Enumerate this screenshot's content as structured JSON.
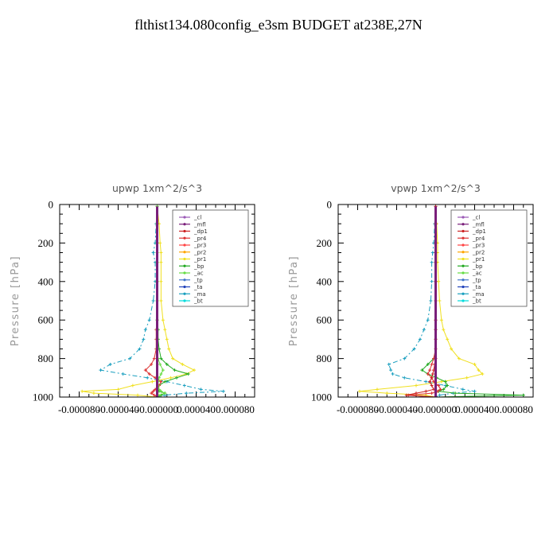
{
  "title": "flthist134.080config_e3sm  BUDGET at238E,27N",
  "legend_entries": [
    {
      "name": "_cl",
      "color": "#9b59b6"
    },
    {
      "name": "_mfl",
      "color": "#7a1f7a"
    },
    {
      "name": "_dp1",
      "color": "#cc2222"
    },
    {
      "name": "_pr4",
      "color": "#dd3333"
    },
    {
      "name": "_pr3",
      "color": "#ff4444"
    },
    {
      "name": "_pr2",
      "color": "#ffa500"
    },
    {
      "name": "_pr1",
      "color": "#f0e020"
    },
    {
      "name": "_bp",
      "color": "#22aa22"
    },
    {
      "name": "_ac",
      "color": "#66dd44"
    },
    {
      "name": "_tp",
      "color": "#4477cc"
    },
    {
      "name": "_ta",
      "color": "#2244bb"
    },
    {
      "name": "_ma",
      "color": "#1a9fbf"
    },
    {
      "name": "_bt",
      "color": "#00dddd"
    }
  ],
  "chart_data": [
    {
      "type": "line",
      "title": "upwp   1xm^2/s^3",
      "xlabel": "",
      "ylabel": "Pressure [hPa]",
      "xlim": [
        -0.0001,
        0.0001
      ],
      "ylim": [
        1000,
        0
      ],
      "xticks": [
        "-0.000080",
        "-0.000040",
        "-0.000000",
        "0.000040",
        "0.000080"
      ],
      "xtick_values": [
        -8e-05,
        -4e-05,
        0.0,
        4e-05,
        8e-05
      ],
      "yticks": [
        "0",
        "200",
        "400",
        "600",
        "800",
        "1000"
      ],
      "ytick_values": [
        0,
        200,
        400,
        600,
        800,
        1000
      ],
      "pressure": [
        10,
        100,
        200,
        250,
        300,
        400,
        500,
        600,
        650,
        700,
        750,
        800,
        830,
        860,
        880,
        900,
        920,
        940,
        960,
        970,
        980,
        990,
        1000
      ],
      "series": [
        {
          "name": "_pr1",
          "values": [
            0,
            2e-06,
            3e-06,
            4e-06,
            4e-06,
            4e-06,
            4e-06,
            6e-06,
            8e-06,
            1e-05,
            1.2e-05,
            1.6e-05,
            2.6e-05,
            3.8e-05,
            3e-05,
            1.4e-05,
            -5e-06,
            -2.5e-05,
            -4e-05,
            -7.7e-05,
            -6.5e-05,
            -2e-05,
            0
          ]
        },
        {
          "name": "_ma",
          "values": [
            0,
            -1e-06,
            -2e-06,
            -4e-06,
            -2e-06,
            -2e-06,
            -4e-06,
            -8e-06,
            -1.2e-05,
            -1.4e-05,
            -1.8e-05,
            -2.8e-05,
            -4.8e-05,
            -5.8e-05,
            -3.5e-05,
            -1e-05,
            1e-05,
            2.8e-05,
            4.5e-05,
            6.8e-05,
            3e-05,
            8e-06,
            0
          ]
        },
        {
          "name": "_bp",
          "values": [
            0,
            0,
            0,
            0,
            0,
            0,
            0,
            0,
            1e-06,
            1e-06,
            2e-06,
            4e-06,
            1e-05,
            1.8e-05,
            3.2e-05,
            2e-05,
            8e-06,
            2e-06,
            1e-06,
            2e-06,
            8e-06,
            4e-06,
            0
          ]
        },
        {
          "name": "_pr4",
          "values": [
            0,
            0,
            0,
            0,
            0,
            0,
            0,
            0,
            -1e-06,
            -1e-06,
            -1e-06,
            -3e-06,
            -6e-06,
            -1.2e-05,
            -8e-06,
            -2e-06,
            4e-06,
            2e-06,
            -2e-06,
            -4e-06,
            -6e-06,
            -3e-06,
            0
          ]
        },
        {
          "name": "_ac",
          "values": [
            0,
            0,
            0,
            0,
            0,
            0,
            0,
            0,
            0,
            0,
            0,
            1e-06,
            3e-06,
            6e-06,
            4e-06,
            2e-06,
            1e-06,
            1e-06,
            2e-06,
            4e-06,
            8e-06,
            2e-06,
            0
          ]
        },
        {
          "name": "_mfl",
          "values": [
            0,
            0,
            0,
            0,
            0,
            0,
            0,
            0,
            0,
            0,
            0,
            0,
            0,
            0,
            0,
            0,
            0,
            0,
            0,
            0,
            0,
            0,
            0
          ]
        }
      ]
    },
    {
      "type": "line",
      "title": "vpwp   1xm^2/s^3",
      "xlabel": "",
      "ylabel": "Pressure [hPa]",
      "xlim": [
        -0.0001,
        0.0001
      ],
      "ylim": [
        1000,
        0
      ],
      "xticks": [
        "-0.000080",
        "-0.000040",
        "-0.000000",
        "0.000040",
        "0.000080"
      ],
      "xtick_values": [
        -8e-05,
        -4e-05,
        0.0,
        4e-05,
        8e-05
      ],
      "yticks": [
        "0",
        "200",
        "400",
        "600",
        "800",
        "1000"
      ],
      "ytick_values": [
        0,
        200,
        400,
        600,
        800,
        1000
      ],
      "pressure": [
        10,
        100,
        200,
        250,
        300,
        400,
        500,
        600,
        650,
        700,
        750,
        800,
        830,
        860,
        880,
        900,
        920,
        940,
        960,
        970,
        980,
        990,
        1000
      ],
      "series": [
        {
          "name": "_pr1",
          "values": [
            0,
            1e-06,
            2e-06,
            2e-06,
            2e-06,
            3e-06,
            4e-06,
            6e-06,
            8e-06,
            1.2e-05,
            1.6e-05,
            2.4e-05,
            4e-05,
            4.4e-05,
            4.8e-05,
            3.2e-05,
            6e-06,
            -2e-05,
            -6e-05,
            -7.8e-05,
            -5e-05,
            -1e-05,
            0
          ]
        },
        {
          "name": "_ma",
          "values": [
            0,
            -1e-06,
            -2e-06,
            -3e-06,
            -4e-06,
            -4e-06,
            -5e-06,
            -8e-06,
            -1.2e-05,
            -1.6e-05,
            -2.2e-05,
            -3.2e-05,
            -4.8e-05,
            -4.6e-05,
            -4.4e-05,
            -3.2e-05,
            -1e-05,
            1e-05,
            2.8e-05,
            4e-05,
            1.8e-05,
            4e-06,
            0
          ]
        },
        {
          "name": "_bp",
          "values": [
            0,
            0,
            0,
            0,
            0,
            0,
            0,
            0,
            0,
            0,
            0,
            -2e-06,
            -8e-06,
            -1.4e-05,
            -8e-06,
            1e-06,
            1e-05,
            1.2e-05,
            8e-06,
            3e-06,
            2e-05,
            9e-05,
            0
          ]
        },
        {
          "name": "_pr4",
          "values": [
            0,
            0,
            0,
            0,
            0,
            0,
            0,
            0,
            0,
            0,
            0,
            -2e-06,
            -4e-06,
            -6e-06,
            -8e-06,
            -4e-06,
            -2e-06,
            3e-06,
            5e-06,
            2e-06,
            -4e-06,
            -2.8e-05,
            0
          ]
        },
        {
          "name": "_dp1",
          "values": [
            0,
            0,
            0,
            0,
            0,
            0,
            0,
            0,
            0,
            0,
            0,
            0,
            -1e-06,
            -2e-06,
            -3e-06,
            -4e-06,
            -6e-06,
            -4e-06,
            -2e-06,
            -1e-05,
            -2e-05,
            -3e-05,
            0
          ]
        },
        {
          "name": "_mfl",
          "values": [
            0,
            0,
            0,
            0,
            0,
            0,
            0,
            0,
            0,
            0,
            0,
            0,
            0,
            0,
            0,
            0,
            0,
            0,
            0,
            0,
            0,
            0,
            0
          ]
        }
      ]
    }
  ]
}
